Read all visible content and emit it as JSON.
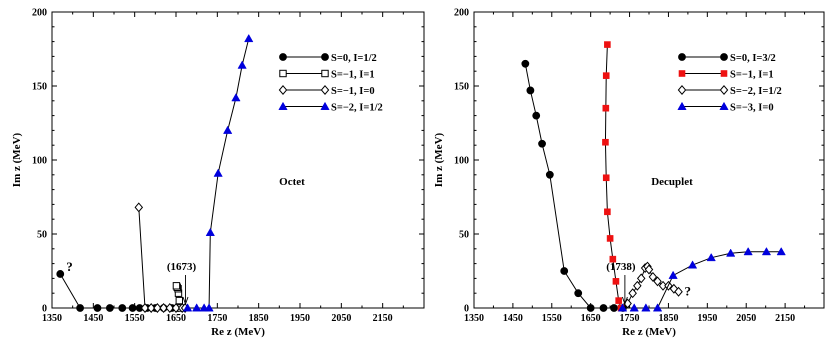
{
  "chart_data": [
    {
      "type": "line",
      "title": "Octet",
      "xlabel": "Re z (MeV)",
      "ylabel": "Im z (MeV)",
      "xlim": [
        1350,
        2250
      ],
      "ylim": [
        0,
        200
      ],
      "xticks": [
        1350,
        1450,
        1550,
        1650,
        1750,
        1850,
        1950,
        2050,
        2150
      ],
      "yticks": [
        0,
        50,
        100,
        150,
        200
      ],
      "grid": false,
      "legend": "top-right",
      "series": [
        {
          "name": "S=0, I=1/2",
          "marker": "filled-circle",
          "color": "#000000",
          "x": [
            1370,
            1418,
            1460,
            1490,
            1520,
            1545,
            1562,
            1580,
            1600,
            1620,
            1640,
            1655,
            1665
          ],
          "y": [
            23,
            0,
            0,
            0,
            0,
            0,
            0,
            0,
            0,
            0,
            0,
            0,
            0
          ]
        },
        {
          "name": "S=−1, I=1",
          "marker": "open-square",
          "color": "#000000",
          "x": [
            1660,
            1658,
            1656,
            1655,
            1653,
            1651
          ],
          "y": [
            0,
            5,
            10,
            13,
            14,
            15
          ]
        },
        {
          "name": "S=−1, I=0",
          "marker": "open-diamond",
          "color": "#000000",
          "x": [
            1560,
            1575,
            1590,
            1605,
            1620,
            1635,
            1650,
            1665,
            1672
          ],
          "y": [
            68,
            0,
            0,
            0,
            0,
            0,
            0,
            0,
            0
          ]
        },
        {
          "name": "S=−2, I=1/2",
          "marker": "filled-triangle",
          "color": "#0000dd",
          "x": [
            1678,
            1700,
            1718,
            1730,
            1733,
            1752,
            1775,
            1795,
            1810,
            1826
          ],
          "y": [
            0,
            0,
            0,
            0,
            51,
            91,
            120,
            142,
            164,
            182
          ]
        }
      ],
      "annotations": [
        {
          "text": "(1673)",
          "x": 1673,
          "y": 0,
          "style": "arrow"
        },
        {
          "text": "?",
          "x": 1370,
          "y": 23
        }
      ]
    },
    {
      "type": "line",
      "title": "Decuplet",
      "xlabel": "Re z (MeV)",
      "ylabel": "Im z (MeV)",
      "xlim": [
        1350,
        2250
      ],
      "ylim": [
        0,
        200
      ],
      "xticks": [
        1350,
        1450,
        1550,
        1650,
        1750,
        1850,
        1950,
        2050,
        2150
      ],
      "yticks": [
        0,
        50,
        100,
        150,
        200
      ],
      "grid": false,
      "legend": "top-right",
      "series": [
        {
          "name": "S=0, I=3/2",
          "marker": "filled-circle",
          "color": "#000000",
          "x": [
            1482,
            1495,
            1510,
            1525,
            1545,
            1582,
            1618,
            1650,
            1683,
            1710,
            1733
          ],
          "y": [
            165,
            147,
            130,
            111,
            90,
            25,
            10,
            0,
            0,
            0,
            0
          ]
        },
        {
          "name": "S=−1, I=1",
          "marker": "filled-square",
          "color": "#ee1111",
          "x": [
            1693,
            1690,
            1689,
            1688,
            1690,
            1693,
            1700,
            1707,
            1715,
            1722,
            1728
          ],
          "y": [
            178,
            157,
            135,
            112,
            88,
            65,
            47,
            33,
            18,
            5,
            0
          ]
        },
        {
          "name": "S=−2, I=1/2",
          "marker": "open-diamond",
          "color": "#000000",
          "x": [
            1745,
            1758,
            1770,
            1780,
            1790,
            1796,
            1800,
            1810,
            1822,
            1836,
            1850,
            1864,
            1876
          ],
          "y": [
            3,
            10,
            15,
            20,
            27,
            28,
            26,
            21,
            18,
            15,
            15,
            13,
            11
          ]
        },
        {
          "name": "S=−3, I=0",
          "marker": "filled-triangle",
          "color": "#0000dd",
          "x": [
            1732,
            1762,
            1792,
            1822,
            1862,
            1912,
            1960,
            2010,
            2055,
            2102,
            2140
          ],
          "y": [
            0,
            0,
            0,
            0,
            22,
            29,
            34,
            37,
            38,
            38,
            38
          ]
        }
      ],
      "annotations": [
        {
          "text": "(1738)",
          "x": 1738,
          "y": 0,
          "style": "arrow"
        },
        {
          "text": "?",
          "x": 1876,
          "y": 11
        }
      ]
    }
  ]
}
